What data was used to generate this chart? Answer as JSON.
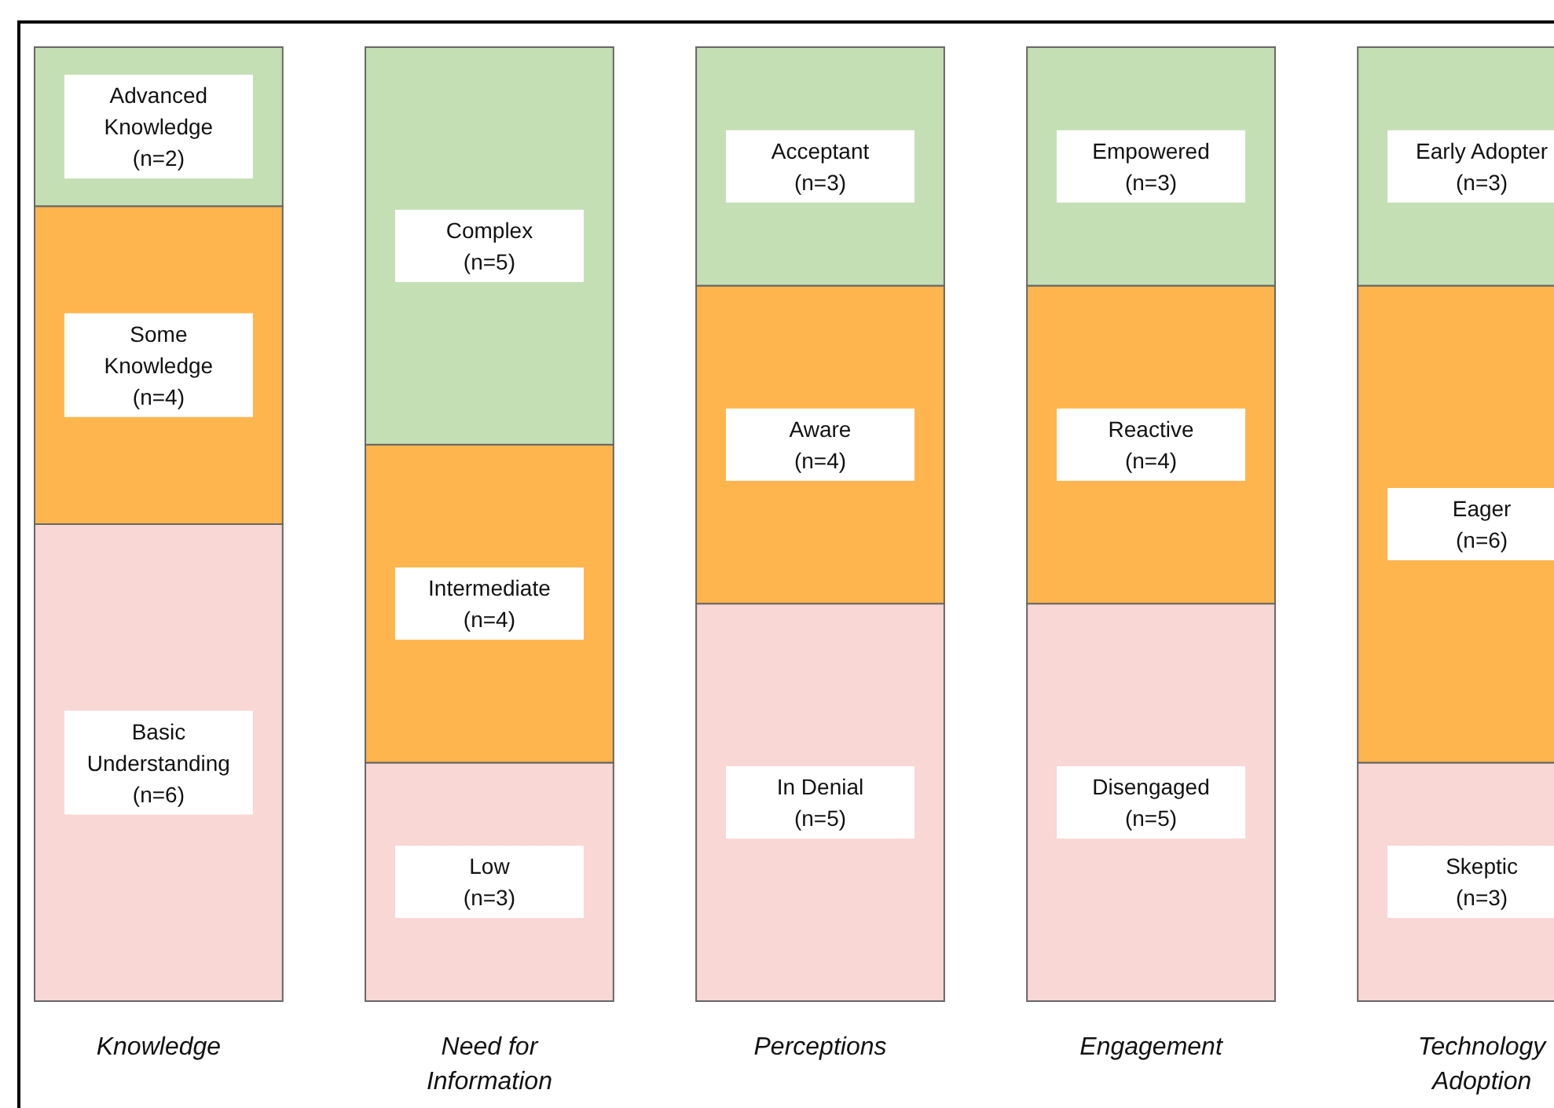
{
  "chart_data": {
    "type": "bar",
    "stacked": true,
    "categories": [
      "Knowledge",
      "Need for\nInformation",
      "Perceptions",
      "Engagement",
      "Technology\nAdoption"
    ],
    "series": [
      {
        "color": "#f8d7d5",
        "values": [
          6,
          3,
          5,
          5,
          3
        ],
        "value_labels": [
          "Basic\nUnderstanding\n(n=6)",
          "Low\n(n=3)",
          "In Denial\n(n=5)",
          "Disengaged\n(n=5)",
          "Skeptic\n(n=3)"
        ]
      },
      {
        "color": "#ffb54d",
        "values": [
          4,
          4,
          4,
          4,
          6
        ],
        "value_labels": [
          "Some\nKnowledge\n(n=4)",
          "Intermediate\n(n=4)",
          "Aware\n(n=4)",
          "Reactive\n(n=4)",
          "Eager\n(n=6)"
        ]
      },
      {
        "color": "#c5dfb5",
        "values": [
          2,
          5,
          3,
          3,
          3
        ],
        "value_labels": [
          "Advanced\nKnowledge\n(n=2)",
          "Complex\n(n=5)",
          "Acceptant\n(n=3)",
          "Empowered\n(n=3)",
          "Early Adopter\n(n=3)"
        ]
      }
    ]
  }
}
